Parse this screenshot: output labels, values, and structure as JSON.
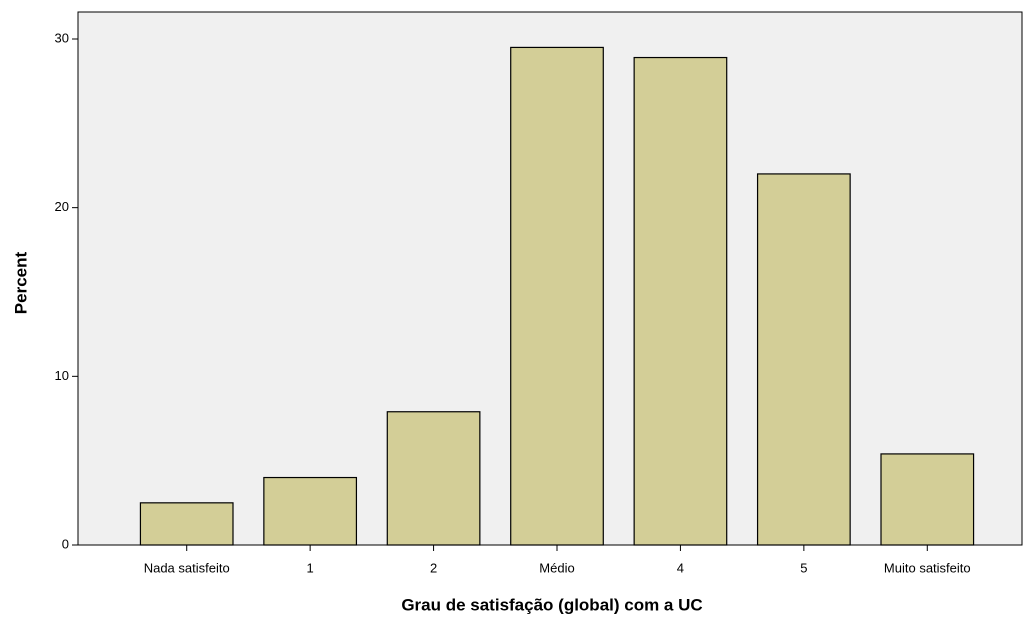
{
  "chart_data": {
    "type": "bar",
    "x_label": "Grau de satisfação (global) com a UC",
    "y_label": "Percent",
    "categories": [
      "Nada satisfeito",
      "1",
      "2",
      "Médio",
      "4",
      "5",
      "Muito satisfeito"
    ],
    "values": [
      2.5,
      4.0,
      7.9,
      29.5,
      28.9,
      22.0,
      5.4
    ],
    "color": "#d3ce97",
    "ylim": [
      0,
      31.6
    ],
    "yticks": [
      0,
      10,
      20,
      30
    ],
    "grid": false
  }
}
